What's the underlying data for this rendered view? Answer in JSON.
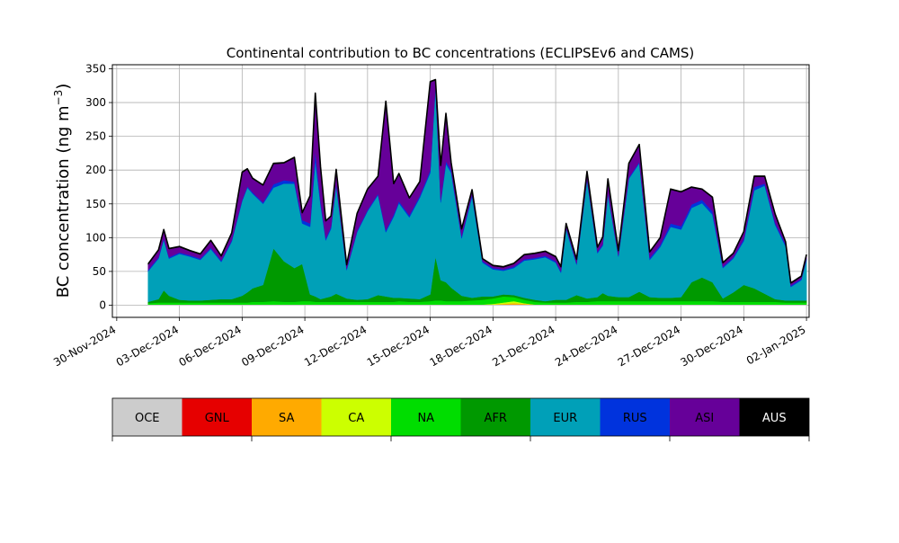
{
  "chart_data": {
    "type": "area",
    "stacked": true,
    "title": "Continental contribution to BC concentrations (ECLIPSEv6 and CAMS)",
    "ylabel": "BC concentration (ng m",
    "ylabel_superscript": "−3",
    "ylabel_close": ")",
    "ylim": [
      -18,
      356
    ],
    "yticks": [
      0,
      50,
      100,
      150,
      200,
      250,
      300,
      350
    ],
    "xlim": [
      "2024-11-29T19:00",
      "2025-01-02T03:00"
    ],
    "xticks": [
      "30-Nov-2024",
      "03-Dec-2024",
      "06-Dec-2024",
      "09-Dec-2024",
      "12-Dec-2024",
      "15-Dec-2024",
      "18-Dec-2024",
      "21-Dec-2024",
      "24-Dec-2024",
      "27-Dec-2024",
      "30-Dec-2024",
      "02-Jan-2025"
    ],
    "grid": true,
    "x": [
      "2024-12-01T12:00",
      "2024-12-02T00:00",
      "2024-12-02T06:00",
      "2024-12-02T12:00",
      "2024-12-03T00:00",
      "2024-12-03T12:00",
      "2024-12-04T00:00",
      "2024-12-04T12:00",
      "2024-12-05T00:00",
      "2024-12-05T12:00",
      "2024-12-06T00:00",
      "2024-12-06T06:00",
      "2024-12-06T12:00",
      "2024-12-07T00:00",
      "2024-12-07T12:00",
      "2024-12-08T00:00",
      "2024-12-08T12:00",
      "2024-12-08T21:00",
      "2024-12-09T06:00",
      "2024-12-09T12:00",
      "2024-12-09T18:00",
      "2024-12-10T00:00",
      "2024-12-10T06:00",
      "2024-12-10T12:00",
      "2024-12-11T00:00",
      "2024-12-11T12:00",
      "2024-12-12T00:00",
      "2024-12-12T12:00",
      "2024-12-12T21:00",
      "2024-12-13T06:00",
      "2024-12-13T12:00",
      "2024-12-14T00:00",
      "2024-12-14T12:00",
      "2024-12-15T00:00",
      "2024-12-15T06:00",
      "2024-12-15T12:00",
      "2024-12-15T18:00",
      "2024-12-16T00:00",
      "2024-12-16T12:00",
      "2024-12-17T00:00",
      "2024-12-17T12:00",
      "2024-12-18T00:00",
      "2024-12-18T12:00",
      "2024-12-19T00:00",
      "2024-12-19T12:00",
      "2024-12-20T00:00",
      "2024-12-20T12:00",
      "2024-12-21T00:00",
      "2024-12-21T06:00",
      "2024-12-21T12:00",
      "2024-12-22T00:00",
      "2024-12-22T12:00",
      "2024-12-23T00:00",
      "2024-12-23T06:00",
      "2024-12-23T12:00",
      "2024-12-24T00:00",
      "2024-12-24T12:00",
      "2024-12-25T00:00",
      "2024-12-25T12:00",
      "2024-12-26T00:00",
      "2024-12-26T12:00",
      "2024-12-27T00:00",
      "2024-12-27T12:00",
      "2024-12-28T00:00",
      "2024-12-28T12:00",
      "2024-12-29T00:00",
      "2024-12-29T12:00",
      "2024-12-30T00:00",
      "2024-12-30T12:00",
      "2024-12-31T00:00",
      "2024-12-31T12:00",
      "2025-01-01T00:00",
      "2025-01-01T06:00",
      "2025-01-01T12:00",
      "2025-01-01T18:00",
      "2025-01-02T00:00"
    ],
    "series": [
      {
        "name": "OCE",
        "color": "#cccccc",
        "values": [
          1,
          1,
          1,
          1,
          1,
          1,
          1,
          1,
          1,
          1,
          1,
          1,
          1,
          1,
          1,
          1,
          1,
          1,
          1,
          1,
          1,
          1,
          1,
          1,
          1,
          1,
          1,
          1,
          1,
          1,
          1,
          1,
          1,
          1,
          1,
          1,
          1,
          1,
          1,
          1,
          1,
          1,
          1,
          1,
          1,
          1,
          1,
          1,
          1,
          1,
          1,
          1,
          1,
          1,
          1,
          1,
          1,
          1,
          1,
          1,
          1,
          1,
          1,
          1,
          1,
          1,
          1,
          1,
          1,
          1,
          1,
          1,
          1,
          1,
          1,
          1
        ]
      },
      {
        "name": "GNL",
        "color": "#e60000",
        "values": [
          0,
          0,
          0,
          0,
          0,
          0,
          0,
          0,
          0,
          0,
          0,
          0,
          0,
          0,
          0,
          0,
          0,
          0,
          0,
          0,
          0,
          0,
          0,
          0,
          0,
          0,
          0,
          0,
          0,
          0,
          0,
          0,
          0,
          0,
          0,
          0,
          0,
          0,
          0,
          0,
          0,
          0,
          0,
          0,
          0,
          0,
          0,
          0,
          0,
          0,
          0,
          0,
          0,
          0,
          0,
          0,
          0,
          0,
          0,
          0,
          0,
          0,
          0,
          0,
          0,
          0,
          0,
          0,
          0,
          0,
          0,
          0,
          0,
          0,
          0,
          0
        ]
      },
      {
        "name": "SA",
        "color": "#ffaa00",
        "values": [
          0,
          0,
          0,
          0,
          0,
          0,
          0,
          0,
          0,
          0,
          0,
          0,
          0,
          0,
          0,
          0,
          0,
          0,
          0,
          0,
          0,
          0,
          0,
          0,
          0,
          0,
          0,
          0,
          0,
          0,
          0,
          0,
          0,
          0,
          0,
          0,
          0,
          0,
          0,
          0,
          0,
          0,
          1,
          2,
          1,
          0,
          0,
          0,
          0,
          0,
          0,
          0,
          0,
          0,
          0,
          0,
          0,
          0,
          0,
          0,
          0,
          0,
          0,
          0,
          0,
          0,
          0,
          0,
          0,
          0,
          0,
          0,
          0,
          0,
          0,
          0
        ]
      },
      {
        "name": "CA",
        "color": "#ccff00",
        "values": [
          0,
          0,
          0,
          0,
          0,
          0,
          0,
          0,
          0,
          0,
          0,
          0,
          0,
          0,
          0,
          0,
          0,
          0,
          0,
          0,
          0,
          0,
          0,
          0,
          0,
          0,
          0,
          0,
          0,
          0,
          0,
          0,
          0,
          0,
          0,
          0,
          0,
          0,
          0,
          0,
          0,
          1,
          2,
          3,
          1,
          0,
          0,
          0,
          0,
          0,
          0,
          0,
          0,
          0,
          0,
          0,
          0,
          0,
          0,
          0,
          0,
          0,
          0,
          0,
          0,
          0,
          0,
          0,
          0,
          0,
          0,
          0,
          0,
          0,
          0,
          0
        ]
      },
      {
        "name": "NA",
        "color": "#00dd00",
        "values": [
          2,
          3,
          3,
          3,
          3,
          3,
          3,
          3,
          3,
          3,
          3,
          3,
          4,
          4,
          5,
          4,
          4,
          5,
          5,
          4,
          4,
          4,
          4,
          4,
          4,
          4,
          4,
          4,
          4,
          4,
          5,
          4,
          4,
          5,
          6,
          6,
          5,
          5,
          5,
          6,
          7,
          8,
          9,
          6,
          5,
          4,
          3,
          3,
          3,
          3,
          4,
          4,
          5,
          5,
          5,
          5,
          5,
          5,
          5,
          5,
          5,
          5,
          5,
          5,
          5,
          4,
          4,
          4,
          4,
          4,
          4,
          3,
          3,
          3,
          3,
          3
        ]
      },
      {
        "name": "AFR",
        "color": "#009900",
        "values": [
          2,
          5,
          18,
          10,
          4,
          3,
          3,
          4,
          5,
          5,
          10,
          15,
          20,
          25,
          78,
          60,
          50,
          55,
          10,
          8,
          4,
          6,
          8,
          12,
          5,
          3,
          4,
          10,
          8,
          6,
          5,
          5,
          4,
          10,
          65,
          30,
          28,
          20,
          8,
          4,
          5,
          3,
          3,
          3,
          3,
          3,
          2,
          4,
          4,
          4,
          10,
          5,
          6,
          12,
          8,
          6,
          6,
          14,
          6,
          5,
          5,
          6,
          28,
          35,
          28,
          5,
          14,
          25,
          20,
          12,
          4,
          3,
          3,
          3,
          3,
          3
        ]
      },
      {
        "name": "EUR",
        "color": "#00a0b8",
        "values": [
          45,
          60,
          75,
          55,
          68,
          65,
          60,
          75,
          55,
          85,
          140,
          155,
          140,
          120,
          90,
          115,
          125,
          60,
          100,
          200,
          140,
          85,
          100,
          160,
          42,
          100,
          130,
          148,
          95,
          120,
          140,
          120,
          150,
          180,
          250,
          115,
          175,
          170,
          85,
          150,
          50,
          40,
          35,
          40,
          55,
          60,
          65,
          55,
          40,
          105,
          45,
          175,
          65,
          70,
          150,
          60,
          175,
          190,
          55,
          75,
          105,
          100,
          110,
          110,
          100,
          45,
          50,
          65,
          145,
          160,
          110,
          80,
          20,
          25,
          30,
          60
        ]
      },
      {
        "name": "RUS",
        "color": "#0033dd",
        "values": [
          2,
          2,
          2,
          2,
          2,
          2,
          2,
          2,
          2,
          2,
          2,
          2,
          2,
          2,
          5,
          5,
          3,
          5,
          5,
          15,
          5,
          3,
          3,
          3,
          2,
          2,
          2,
          2,
          3,
          3,
          3,
          3,
          3,
          4,
          4,
          4,
          4,
          4,
          3,
          3,
          2,
          2,
          2,
          2,
          2,
          2,
          2,
          2,
          2,
          2,
          2,
          2,
          2,
          2,
          2,
          2,
          2,
          2,
          3,
          3,
          5,
          5,
          5,
          5,
          5,
          2,
          2,
          3,
          5,
          3,
          3,
          3,
          2,
          2,
          2,
          2
        ]
      },
      {
        "name": "ASI",
        "color": "#660099",
        "values": [
          8,
          10,
          12,
          12,
          8,
          6,
          6,
          10,
          6,
          10,
          40,
          25,
          20,
          25,
          30,
          25,
          35,
          10,
          40,
          85,
          50,
          25,
          15,
          20,
          5,
          25,
          30,
          25,
          190,
          45,
          40,
          25,
          20,
          130,
          7,
          50,
          70,
          10,
          10,
          6,
          3,
          3,
          3,
          4,
          6,
          6,
          6,
          6,
          6,
          5,
          5,
          10,
          6,
          10,
          20,
          6,
          20,
          25,
          8,
          10,
          50,
          50,
          25,
          15,
          20,
          5,
          5,
          10,
          15,
          10,
          12,
          3,
          3,
          3,
          3,
          5
        ]
      },
      {
        "name": "AUS",
        "color": "#000000",
        "values": [
          1,
          1,
          1,
          1,
          1,
          1,
          1,
          1,
          1,
          1,
          1,
          1,
          1,
          1,
          1,
          1,
          1,
          1,
          1,
          1,
          1,
          1,
          1,
          1,
          1,
          1,
          1,
          1,
          1,
          1,
          1,
          1,
          1,
          1,
          1,
          1,
          1,
          1,
          1,
          1,
          1,
          1,
          1,
          1,
          1,
          1,
          1,
          1,
          1,
          1,
          1,
          1,
          1,
          1,
          1,
          1,
          1,
          1,
          1,
          1,
          1,
          1,
          1,
          1,
          1,
          1,
          1,
          1,
          1,
          1,
          1,
          1,
          1,
          1,
          1,
          1
        ]
      }
    ],
    "legend": {
      "placement": "bottom",
      "entries": [
        "OCE",
        "GNL",
        "SA",
        "CA",
        "NA",
        "AFR",
        "EUR",
        "RUS",
        "ASI",
        "AUS"
      ]
    }
  }
}
